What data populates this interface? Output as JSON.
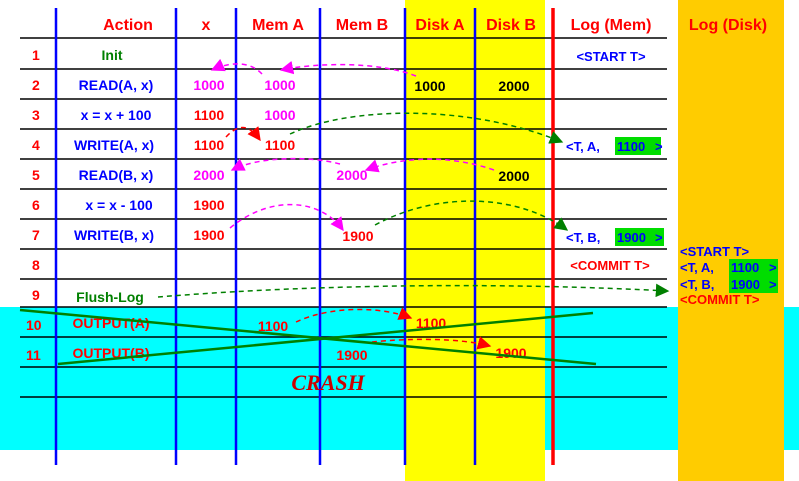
{
  "headers": {
    "action": "Action",
    "x": "x",
    "mem_a": "Mem A",
    "mem_b": "Mem B",
    "disk_a": "Disk A",
    "disk_b": "Disk B",
    "log_mem": "Log (Mem)",
    "log_disk": "Log (Disk)"
  },
  "rows": [
    {
      "num": "1",
      "action": "Init",
      "action_color": "#008000",
      "x": "",
      "mem_a": "",
      "mem_b": "",
      "disk_a": "",
      "disk_b": "",
      "log": [
        "<START T>"
      ]
    },
    {
      "num": "2",
      "action": "READ(A, x)",
      "action_color": "#0000ff",
      "x": "1000",
      "mem_a": "1000",
      "mem_b": "",
      "disk_a": "1000",
      "disk_b": "2000",
      "log": []
    },
    {
      "num": "3",
      "action": "x = x + 100",
      "action_color": "#0000ff",
      "x": "1100",
      "mem_a": "1000",
      "mem_b": "",
      "disk_a": "",
      "disk_b": "",
      "log": []
    },
    {
      "num": "4",
      "action": "WRITE(A, x)",
      "action_color": "#0000ff",
      "x": "1100",
      "mem_a": "1100",
      "mem_b": "",
      "disk_a": "",
      "disk_b": "",
      "log": [
        "<T, A, ",
        "1100",
        ">"
      ]
    },
    {
      "num": "5",
      "action": "READ(B, x)",
      "action_color": "#0000ff",
      "x": "2000",
      "mem_a": "",
      "mem_b": "2000",
      "disk_a": "",
      "disk_b": "2000",
      "log": []
    },
    {
      "num": "6",
      "action": "x = x - 100",
      "action_color": "#0000ff",
      "x": "1900",
      "mem_a": "",
      "mem_b": "",
      "disk_a": "",
      "disk_b": "",
      "log": []
    },
    {
      "num": "7",
      "action": "WRITE(B, x)",
      "action_color": "#0000ff",
      "x": "1900",
      "mem_a": "",
      "mem_b": "1900",
      "disk_a": "",
      "disk_b": "",
      "log": [
        "<T, B, ",
        "1900",
        ">"
      ]
    },
    {
      "num": "8",
      "action": "",
      "action_color": "#0000ff",
      "x": "",
      "mem_a": "",
      "mem_b": "",
      "disk_a": "",
      "disk_b": "",
      "log": [
        "<COMMIT T>"
      ]
    },
    {
      "num": "9",
      "action": "Flush-Log",
      "action_color": "#008000",
      "x": "",
      "mem_a": "",
      "mem_b": "",
      "disk_a": "",
      "disk_b": "",
      "log": []
    },
    {
      "num": "10",
      "action": "OUTPUT(A)",
      "action_color": "#ff0000",
      "x": "",
      "mem_a": "1100",
      "mem_b": "",
      "disk_a": "1100",
      "disk_b": "",
      "log": []
    },
    {
      "num": "11",
      "action": "OUTPUT(B)",
      "action_color": "#ff0000",
      "x": "",
      "mem_a": "",
      "mem_b": "1900",
      "disk_a": "",
      "disk_b": "1900",
      "log": []
    }
  ],
  "log_disk": {
    "start": "<START T>",
    "rec_a_prefix": "<T, A, ",
    "rec_a_value": "1100",
    "rec_b_prefix": "<T, B, ",
    "rec_b_value": "1900",
    "suffix": ">",
    "commit": "<COMMIT T>"
  },
  "crash_label": "CRASH",
  "colors": {
    "disk_highlight": "#ffff00",
    "log_disk_highlight": "#ffcc00",
    "crash_region": "#00ffff",
    "row_number": "#ff0000",
    "memory_value": "#ff00ff",
    "column_line": "#0000ff",
    "log_separator": "#ff0000",
    "value_highlight": "#00dd00",
    "arrow_green": "#008000",
    "strike_line": "#008000"
  }
}
